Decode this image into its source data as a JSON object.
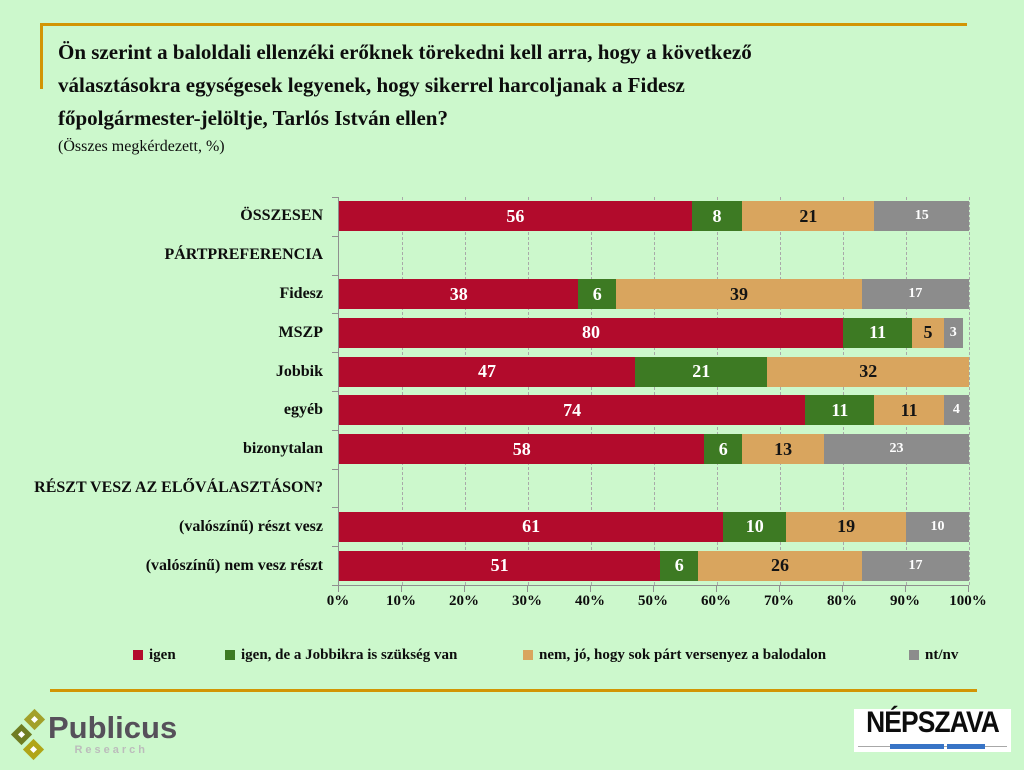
{
  "page": {
    "background_color": "#ccf8cc",
    "accent_line_color": "#d29504"
  },
  "header": {
    "title_lines": [
      "Ön szerint a baloldali ellenzéki erőknek törekedni kell arra, hogy a következő",
      "választásokra egységesek legyenek, hogy sikerrel harcoljanak a Fidesz",
      "főpolgármester-jelöltje, Tarlós István ellen?"
    ],
    "subtitle": "(Összes megkérdezett, %)"
  },
  "chart_data": {
    "type": "bar",
    "orientation": "horizontal",
    "stacked": true,
    "grid": "dashed-vertical",
    "legend_position": "bottom",
    "xlim": [
      0,
      100
    ],
    "x_ticks": [
      "0%",
      "10%",
      "20%",
      "30%",
      "40%",
      "50%",
      "60%",
      "70%",
      "80%",
      "90%",
      "100%"
    ],
    "categories": [
      "ÖSSZESEN",
      "PÁRTPREFERENCIA",
      "Fidesz",
      "MSZP",
      "Jobbik",
      "egyéb",
      "bizonytalan",
      "RÉSZT VESZ AZ ELŐVÁLASZTÁSON?",
      "(valószínű) részt vesz",
      "(valószínű) nem vesz részt"
    ],
    "series": [
      {
        "name": "igen",
        "color": "#b20b2c",
        "label_color": "#ffffff",
        "small_labels": false,
        "values": [
          56,
          null,
          38,
          80,
          47,
          74,
          58,
          null,
          61,
          51
        ]
      },
      {
        "name": "igen, de a Jobbikra is szükség van",
        "color": "#3d7a23",
        "label_color": "#ffffff",
        "small_labels": false,
        "values": [
          8,
          null,
          6,
          11,
          21,
          11,
          6,
          null,
          10,
          6
        ]
      },
      {
        "name": "nem, jó, hogy sok párt versenyez a balodalon",
        "color": "#d9a55e",
        "label_color": "#141414",
        "small_labels": false,
        "values": [
          21,
          null,
          39,
          5,
          32,
          11,
          13,
          null,
          19,
          26
        ]
      },
      {
        "name": "nt/nv",
        "color": "#8c8c8c",
        "label_color": "#ffffff",
        "small_labels": true,
        "values": [
          15,
          null,
          17,
          3,
          0,
          4,
          23,
          null,
          10,
          17
        ]
      }
    ]
  },
  "footer": {
    "publicus_wordmark": "Publicus",
    "publicus_subtitle": "Research",
    "nepszava_wordmark": "NÉPSZAVA"
  }
}
